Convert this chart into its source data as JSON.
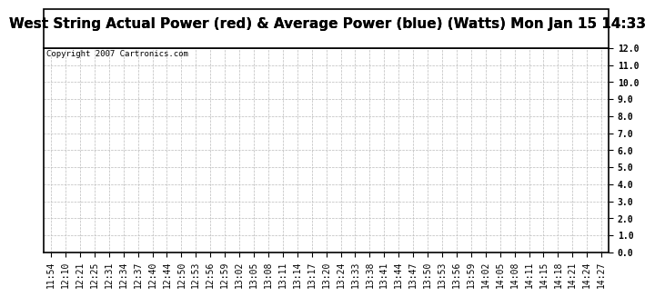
{
  "title": "West String Actual Power (red) & Average Power (blue) (Watts) Mon Jan 15 14:33",
  "copyright_text": "Copyright 2007 Cartronics.com",
  "x_labels": [
    "11:54",
    "12:10",
    "12:21",
    "12:25",
    "12:31",
    "12:34",
    "12:37",
    "12:40",
    "12:44",
    "12:50",
    "12:53",
    "12:56",
    "12:59",
    "13:02",
    "13:05",
    "13:08",
    "13:11",
    "13:14",
    "13:17",
    "13:20",
    "13:24",
    "13:33",
    "13:38",
    "13:41",
    "13:44",
    "13:47",
    "13:50",
    "13:53",
    "13:56",
    "13:59",
    "14:02",
    "14:05",
    "14:08",
    "14:11",
    "14:15",
    "14:18",
    "14:21",
    "14:24",
    "14:27"
  ],
  "y_min": 0.0,
  "y_max": 12.0,
  "y_ticks": [
    0.0,
    1.0,
    2.0,
    3.0,
    4.0,
    5.0,
    6.0,
    7.0,
    8.0,
    9.0,
    10.0,
    11.0,
    12.0
  ],
  "background_color": "#ffffff",
  "grid_color": "#bbbbbb",
  "title_fontsize": 11,
  "tick_fontsize": 7,
  "copyright_fontsize": 6.5,
  "border_color": "#000000"
}
